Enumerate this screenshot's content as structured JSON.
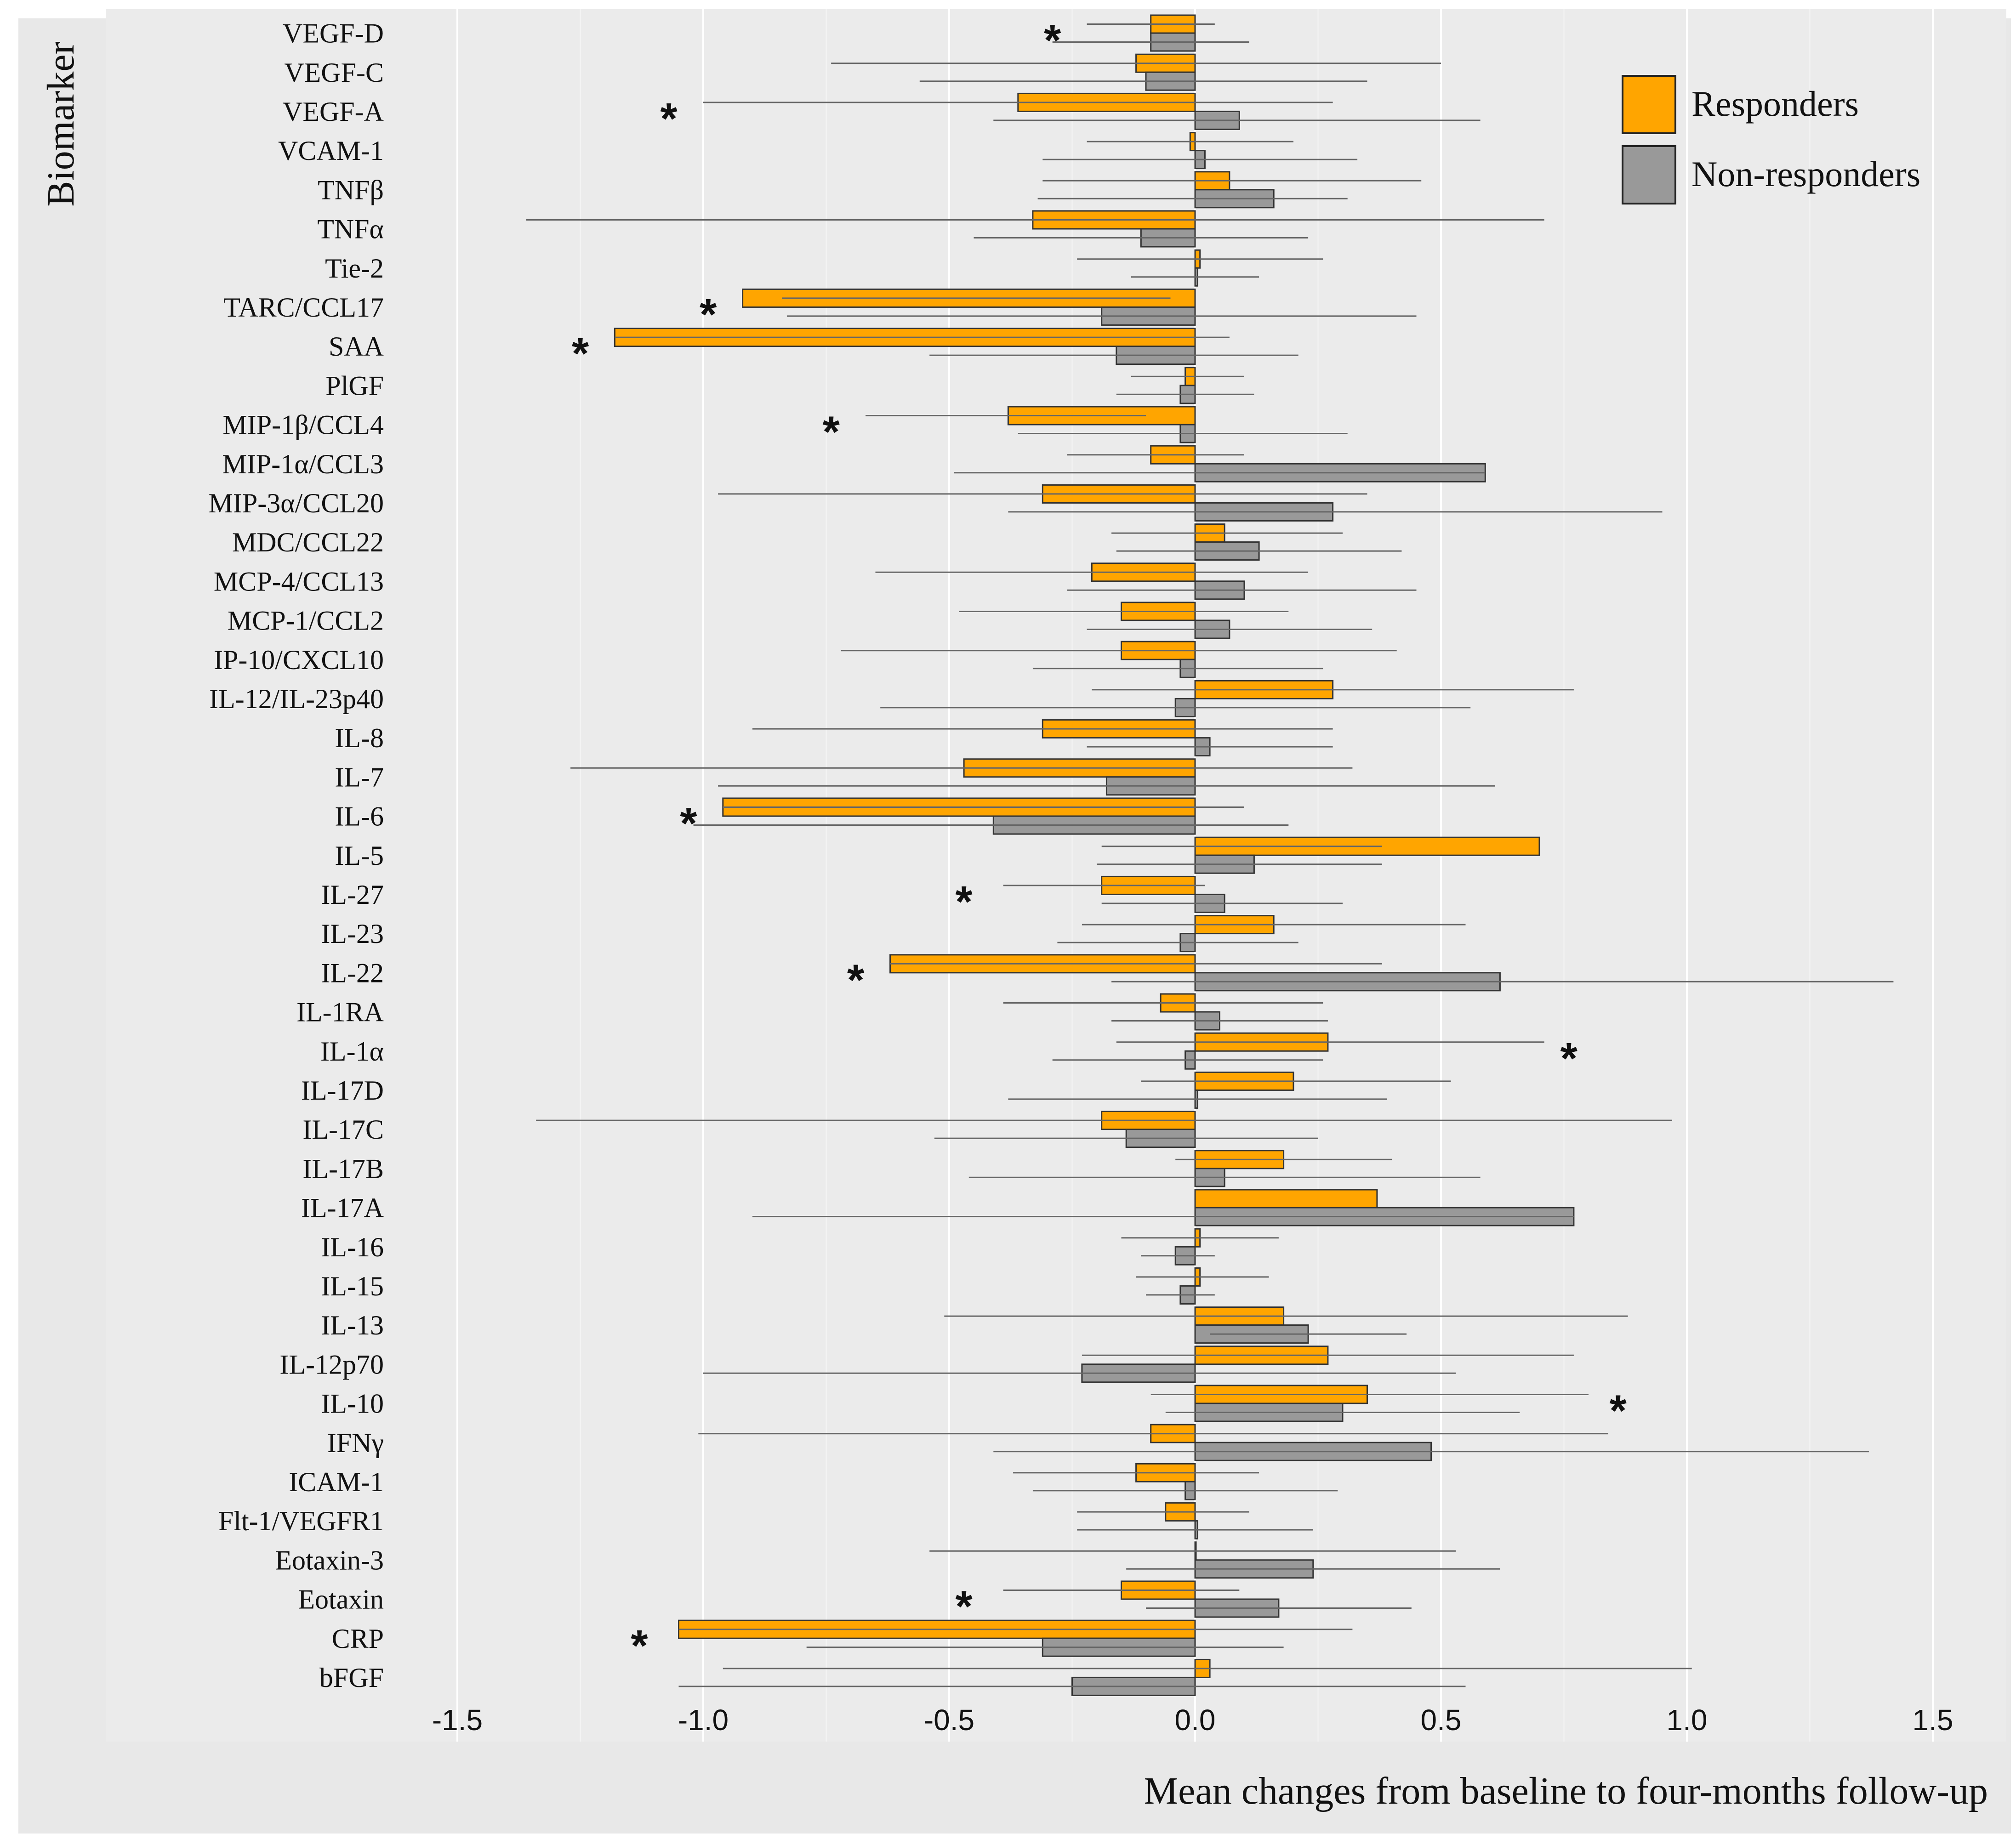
{
  "chart_data": {
    "type": "bar",
    "orientation": "horizontal",
    "ylabel": "Biomarker",
    "xlabel": "Mean changes  from baseline to four-months  follow-up",
    "xlim": [
      -1.65,
      1.65
    ],
    "xticks": [
      -1.5,
      -1.0,
      -0.5,
      0.0,
      0.5,
      1.0,
      1.5
    ],
    "xtick_labels": [
      "-1.5",
      "-1.0",
      "-0.5",
      "0.0",
      "0.5",
      "1.0",
      "1.5"
    ],
    "grid": true,
    "legend_position": "top-right",
    "categories": [
      "VEGF-D",
      "VEGF-C",
      "VEGF-A",
      "VCAM-1",
      "TNFβ",
      "TNFα",
      "Tie-2",
      "TARC/CCL17",
      "SAA",
      "PlGF",
      "MIP-1β/CCL4",
      "MIP-1α/CCL3",
      "MIP-3α/CCL20",
      "MDC/CCL22",
      "MCP-4/CCL13",
      "MCP-1/CCL2",
      "IP-10/CXCL10",
      "IL-12/IL-23p40",
      "IL-8",
      "IL-7",
      "IL-6",
      "IL-5",
      "IL-27",
      "IL-23",
      "IL-22",
      "IL-1RA",
      "IL-1α",
      "IL-17D",
      "IL-17C",
      "IL-17B",
      "IL-17A",
      "IL-16",
      "IL-15",
      "IL-13",
      "IL-12p70",
      "IL-10",
      "IFNγ",
      "ICAM-1",
      "Flt-1/VEGFR1",
      "Eotaxin-3",
      "Eotaxin",
      "CRP",
      "bFGF"
    ],
    "series": [
      {
        "name": "Responders",
        "color": "#FFA500",
        "values": [
          -0.09,
          -0.12,
          -0.36,
          -0.01,
          0.07,
          -0.33,
          0.01,
          -0.92,
          -1.18,
          -0.02,
          -0.38,
          -0.09,
          -0.31,
          0.06,
          -0.21,
          -0.15,
          -0.15,
          0.28,
          -0.31,
          -0.47,
          -0.96,
          0.7,
          -0.19,
          0.16,
          -0.62,
          -0.07,
          0.27,
          0.2,
          -0.19,
          0.18,
          0.37,
          0.01,
          0.01,
          0.18,
          0.27,
          0.35,
          -0.09,
          -0.12,
          -0.06,
          0.0,
          -0.15,
          -1.05,
          0.03
        ],
        "ci_low": [
          -0.22,
          -0.74,
          -1.0,
          -0.22,
          -0.31,
          -1.36,
          -0.24,
          -0.84,
          -1.18,
          -0.13,
          -0.67,
          -0.26,
          -0.97,
          -0.17,
          -0.65,
          -0.48,
          -0.72,
          -0.21,
          -0.9,
          -1.27,
          -0.96,
          -0.19,
          -0.39,
          -0.23,
          -0.62,
          -0.39,
          -0.16,
          -0.11,
          -1.34,
          -0.04,
          -0.88,
          -0.15,
          -0.12,
          -0.51,
          -0.23,
          -0.09,
          -1.01,
          -0.37,
          -0.24,
          -0.54,
          -0.39,
          -1.05,
          -0.96
        ],
        "ci_high": [
          0.04,
          0.5,
          0.28,
          0.2,
          0.46,
          0.71,
          0.26,
          -0.05,
          0.07,
          0.1,
          -0.1,
          0.1,
          0.35,
          0.3,
          0.23,
          0.19,
          0.41,
          0.77,
          0.28,
          0.32,
          0.1,
          0.38,
          0.02,
          0.55,
          0.38,
          0.26,
          0.71,
          0.52,
          0.97,
          0.4,
          -0.88,
          0.17,
          0.15,
          0.88,
          0.77,
          0.8,
          0.84,
          0.13,
          0.11,
          0.53,
          0.09,
          0.32,
          1.01
        ]
      },
      {
        "name": "Non-responders",
        "color": "#999999",
        "values": [
          -0.09,
          -0.1,
          0.09,
          0.02,
          0.16,
          -0.11,
          0.005,
          -0.19,
          -0.16,
          -0.03,
          -0.03,
          0.59,
          0.28,
          0.13,
          0.1,
          0.07,
          -0.03,
          -0.04,
          0.03,
          -0.18,
          -0.41,
          0.12,
          0.06,
          -0.03,
          0.62,
          0.05,
          -0.02,
          0.005,
          -0.14,
          0.06,
          0.77,
          -0.04,
          -0.03,
          0.23,
          -0.23,
          0.3,
          0.48,
          -0.02,
          0.005,
          0.24,
          0.17,
          -0.31,
          -0.25
        ],
        "ci_low": [
          -0.29,
          -0.56,
          -0.41,
          -0.31,
          -0.32,
          -0.45,
          -0.13,
          -0.83,
          -0.54,
          -0.16,
          -0.36,
          -0.49,
          -0.38,
          -0.16,
          -0.26,
          -0.22,
          -0.33,
          -0.64,
          -0.22,
          -0.97,
          -1.02,
          -0.2,
          -0.19,
          -0.28,
          -0.17,
          -0.17,
          -0.29,
          -0.38,
          -0.53,
          -0.46,
          -0.9,
          -0.11,
          -0.1,
          0.03,
          -1.0,
          -0.06,
          -0.41,
          -0.33,
          -0.24,
          -0.14,
          -0.1,
          -0.79,
          -1.05
        ],
        "ci_high": [
          0.11,
          0.35,
          0.58,
          0.33,
          0.31,
          0.23,
          0.13,
          0.45,
          0.21,
          0.12,
          0.31,
          0.59,
          0.95,
          0.42,
          0.45,
          0.36,
          0.26,
          0.56,
          0.28,
          0.61,
          0.19,
          0.38,
          0.3,
          0.21,
          1.42,
          0.27,
          0.26,
          0.39,
          0.25,
          0.58,
          0.77,
          0.04,
          0.04,
          0.43,
          0.53,
          0.66,
          1.37,
          0.29,
          0.24,
          0.62,
          0.44,
          0.18,
          0.55
        ]
      }
    ],
    "significance": [
      {
        "category": "VEGF-D",
        "x": -0.29,
        "label": "*"
      },
      {
        "category": "VEGF-A",
        "x": -1.07,
        "label": "*"
      },
      {
        "category": "TARC/CCL17",
        "x": -0.99,
        "label": "*"
      },
      {
        "category": "SAA",
        "x": -1.25,
        "label": "*"
      },
      {
        "category": "MIP-1β/CCL4",
        "x": -0.74,
        "label": "*"
      },
      {
        "category": "IL-6",
        "x": -1.03,
        "label": "*"
      },
      {
        "category": "IL-27",
        "x": -0.47,
        "label": "*"
      },
      {
        "category": "IL-22",
        "x": -0.69,
        "label": "*"
      },
      {
        "category": "IL-1α",
        "x": 0.76,
        "label": "*"
      },
      {
        "category": "IL-10",
        "x": 0.86,
        "label": "*"
      },
      {
        "category": "Eotaxin",
        "x": -0.47,
        "label": "*"
      },
      {
        "category": "CRP",
        "x": -1.13,
        "label": "*"
      }
    ]
  }
}
